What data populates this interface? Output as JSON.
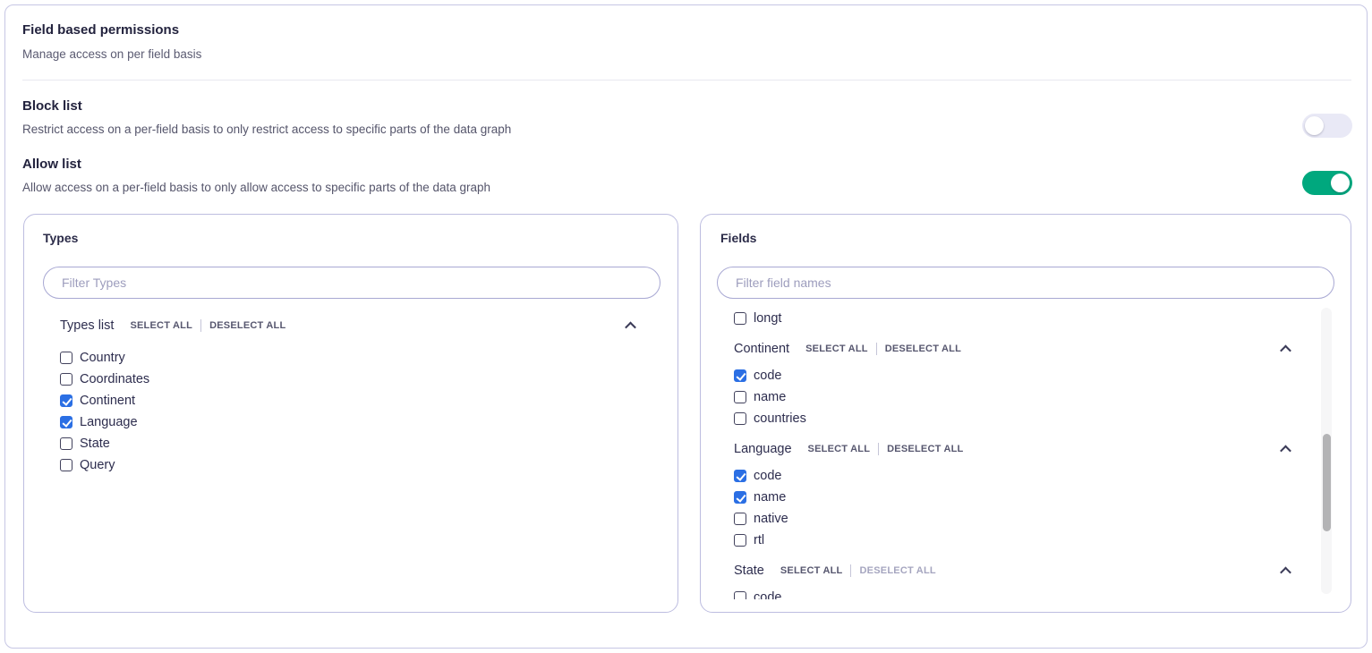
{
  "page": {
    "title": "Field based permissions",
    "subtitle": "Manage access on per field basis"
  },
  "block_list": {
    "title": "Block list",
    "description": "Restrict access on a per-field basis to only restrict access to specific parts of the data graph",
    "enabled": false
  },
  "allow_list": {
    "title": "Allow list",
    "description": "Allow access on a per-field basis to only allow access to specific parts of the data graph",
    "enabled": true
  },
  "types_panel": {
    "title": "Types",
    "filter_placeholder": "Filter Types",
    "group": {
      "label": "Types list",
      "select_all_label": "SELECT ALL",
      "deselect_all_label": "DESELECT ALL"
    },
    "items": [
      {
        "label": "Country",
        "checked": false
      },
      {
        "label": "Coordinates",
        "checked": false
      },
      {
        "label": "Continent",
        "checked": true
      },
      {
        "label": "Language",
        "checked": true
      },
      {
        "label": "State",
        "checked": false
      },
      {
        "label": "Query",
        "checked": false
      }
    ]
  },
  "fields_panel": {
    "title": "Fields",
    "filter_placeholder": "Filter field names",
    "orphan_items": [
      {
        "label": "longt",
        "checked": false
      }
    ],
    "groups": [
      {
        "label": "Continent",
        "select_all_label": "SELECT ALL",
        "deselect_all_label": "DESELECT ALL",
        "deselect_disabled": false,
        "items": [
          {
            "label": "code",
            "checked": true
          },
          {
            "label": "name",
            "checked": false
          },
          {
            "label": "countries",
            "checked": false
          }
        ]
      },
      {
        "label": "Language",
        "select_all_label": "SELECT ALL",
        "deselect_all_label": "DESELECT ALL",
        "deselect_disabled": false,
        "items": [
          {
            "label": "code",
            "checked": true
          },
          {
            "label": "name",
            "checked": true
          },
          {
            "label": "native",
            "checked": false
          },
          {
            "label": "rtl",
            "checked": false
          }
        ]
      },
      {
        "label": "State",
        "select_all_label": "SELECT ALL",
        "deselect_all_label": "DESELECT ALL",
        "deselect_disabled": true,
        "items": [
          {
            "label": "code",
            "checked": false
          }
        ]
      }
    ]
  },
  "colors": {
    "toggle_on": "#00a87e",
    "toggle_off_track": "#e9e9f6",
    "checkbox_checked": "#2b6fe4",
    "panel_border": "#bdbde0",
    "card_border": "#c6c6e4"
  }
}
